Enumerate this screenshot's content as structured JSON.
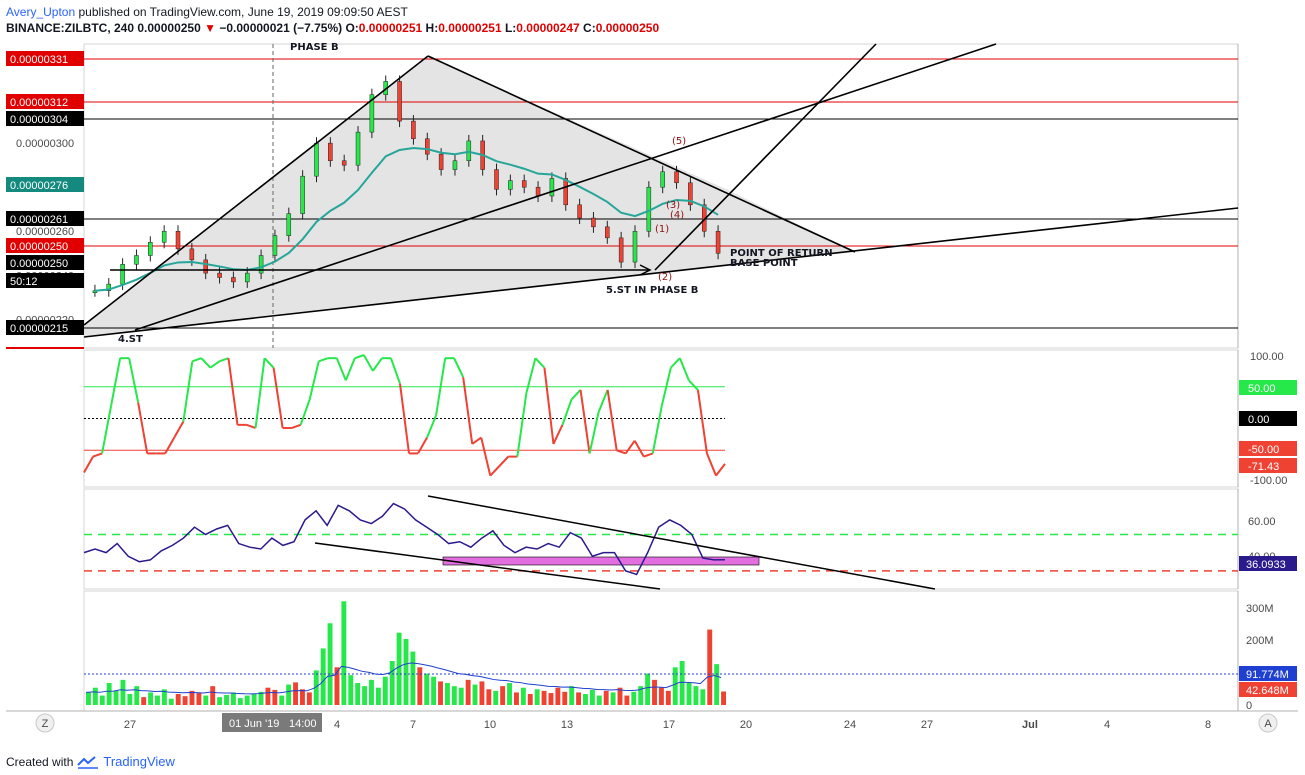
{
  "header": {
    "author": "Avery_Upton",
    "published": "published on TradingView.com, June 19, 2019 09:09:50 AEST",
    "symbol": "BINANCE:ZILBTC, 240",
    "last": "0.00000250",
    "change": "−0.00000021 (−7.75%)",
    "o_label": "O:",
    "o_value": "0.00000251",
    "h_label": "H:",
    "h_value": "0.00000251",
    "l_label": "L:",
    "l_value": "0.00000247",
    "c_label": "C:",
    "c_value": "0.00000250"
  },
  "footer": {
    "created_with": "Created with",
    "brand": "TradingView"
  },
  "colors": {
    "up": "#26e84a",
    "down": "#ef4233",
    "ema": "#26a69a",
    "level_red": "#e00000",
    "rsi": "#2a1b8c",
    "pink_box": "#e36ee0",
    "volume_ma": "#1f3fd0",
    "grid": "#e6e6e6"
  },
  "chart_data": [
    {
      "type": "candlestick",
      "title": "BINANCE:ZILBTC, 240",
      "ylim": [
        2.07e-06,
        3.45e-06
      ],
      "x_ticks": [
        "27",
        "Jun",
        "4",
        "7",
        "10",
        "13",
        "17",
        "20",
        "24",
        "27",
        "Jul",
        "4",
        "8"
      ],
      "y_ticks": [
        "0.00000220",
        "0.00000240",
        "0.00000260",
        "0.00000280",
        "0.00000300",
        "0.00000320"
      ],
      "close_approx": [
        2.33e-06,
        2.36e-06,
        2.45e-06,
        2.49e-06,
        2.55e-06,
        2.6e-06,
        2.52e-06,
        2.47e-06,
        2.41e-06,
        2.39e-06,
        2.37e-06,
        2.41e-06,
        2.49e-06,
        2.58e-06,
        2.68e-06,
        2.85e-06,
        3e-06,
        2.92e-06,
        2.9e-06,
        3.05e-06,
        3.22e-06,
        3.28e-06,
        3.1e-06,
        3.02e-06,
        2.95e-06,
        2.88e-06,
        2.92e-06,
        3.01e-06,
        2.88e-06,
        2.79e-06,
        2.83e-06,
        2.8e-06,
        2.76e-06,
        2.84e-06,
        2.72e-06,
        2.66e-06,
        2.62e-06,
        2.57e-06,
        2.46e-06,
        2.6e-06,
        2.8e-06,
        2.87e-06,
        2.82e-06,
        2.72e-06,
        2.6e-06,
        2.5e-06
      ],
      "ema_line": "EMA",
      "labels": {
        "phase_b": "PHASE B",
        "st4": "4.ST",
        "st5": "5.ST IN PHASE B",
        "return": "POINT OF RETURN",
        "base": "BASE POINT",
        "w1": "(1)",
        "w2": "(2)",
        "w3": "(3)",
        "w4": "(4)",
        "w5": "(5)"
      },
      "price_tags": [
        {
          "text": "0.00000331",
          "color": "#e00000"
        },
        {
          "text": "0.00000312",
          "color": "#e00000"
        },
        {
          "text": "0.00000304",
          "color": "#000000"
        },
        {
          "text": "0.00000276",
          "color": "#14897e"
        },
        {
          "text": "0.00000261",
          "color": "#000000"
        },
        {
          "text": "0.00000250",
          "color": "#e00000"
        },
        {
          "text": "0.00000250",
          "color": "#000000"
        },
        {
          "text": "50:12",
          "color": "#000000"
        },
        {
          "text": "0.00000215",
          "color": "#000000"
        }
      ]
    },
    {
      "type": "line",
      "name": "oscillator",
      "ylim": [
        -100,
        100
      ],
      "y_ticks": [
        "100.00",
        "-100.00"
      ],
      "levels": [
        50,
        0,
        -50
      ],
      "tags": [
        {
          "text": "50.00",
          "color": "#26e84a"
        },
        {
          "text": "0.00",
          "color": "#000000"
        },
        {
          "text": "-50.00",
          "color": "#ef4233"
        },
        {
          "text": "-71.43",
          "color": "#ef4233"
        }
      ],
      "values": [
        -85,
        -60,
        -55,
        20,
        95,
        95,
        25,
        -55,
        -55,
        -55,
        -30,
        -5,
        90,
        95,
        80,
        90,
        95,
        -10,
        -10,
        -15,
        95,
        80,
        -15,
        -15,
        -10,
        30,
        90,
        95,
        95,
        60,
        95,
        100,
        75,
        95,
        95,
        55,
        -55,
        -55,
        -30,
        5,
        95,
        95,
        65,
        -40,
        -30,
        -90,
        -75,
        -60,
        -60,
        40,
        95,
        80,
        -40,
        -10,
        30,
        45,
        -55,
        10,
        45,
        -50,
        -55,
        -35,
        -60,
        -55,
        20,
        80,
        95,
        60,
        45,
        -55,
        -90,
        -71.43
      ]
    },
    {
      "type": "line",
      "name": "RSI",
      "y_ticks": [
        "60.00",
        "40.00"
      ],
      "tags": [
        {
          "text": "36.0933",
          "color": "#2a1b8c"
        }
      ],
      "levels": [
        50,
        30
      ],
      "values": [
        40,
        42,
        40,
        45,
        38,
        35,
        36,
        41,
        44,
        48,
        54,
        50,
        53,
        55,
        45,
        43,
        42,
        48,
        44,
        46,
        58,
        63,
        55,
        66,
        63,
        58,
        56,
        60,
        67,
        64,
        58,
        54,
        50,
        45,
        46,
        43,
        48,
        52,
        44,
        40,
        43,
        42,
        45,
        43,
        51,
        48,
        38,
        40,
        40,
        30,
        28,
        40,
        54,
        58,
        55,
        50,
        37,
        36,
        36.09
      ]
    },
    {
      "type": "bar",
      "name": "Volume",
      "y_ticks": [
        "300M",
        "200M",
        "100M",
        "0"
      ],
      "tags": [
        {
          "text": "91.774M",
          "color": "#1f3fd0"
        },
        {
          "text": "42.648M",
          "color": "#ef4233"
        }
      ],
      "values_m": [
        40,
        55,
        30,
        70,
        45,
        80,
        35,
        60,
        25,
        40,
        30,
        50,
        20,
        35,
        28,
        45,
        38,
        30,
        60,
        25,
        32,
        40,
        22,
        30,
        35,
        42,
        55,
        48,
        30,
        65,
        72,
        50,
        40,
        110,
        180,
        260,
        120,
        330,
        95,
        70,
        60,
        80,
        55,
        90,
        140,
        230,
        210,
        170,
        120,
        100,
        90,
        75,
        70,
        60,
        55,
        80,
        65,
        75,
        50,
        45,
        60,
        70,
        40,
        55,
        35,
        50,
        45,
        38,
        55,
        42,
        60,
        40,
        35,
        48,
        30,
        45,
        40,
        55,
        30,
        42,
        60,
        100,
        80,
        55,
        45,
        120,
        140,
        70,
        60,
        50,
        240,
        130,
        43
      ]
    }
  ],
  "time_labels": {
    "cursor_date": "01 Jun '19",
    "cursor_time": "14:00"
  },
  "axis_buttons": {
    "left": "Z",
    "right": "A"
  }
}
